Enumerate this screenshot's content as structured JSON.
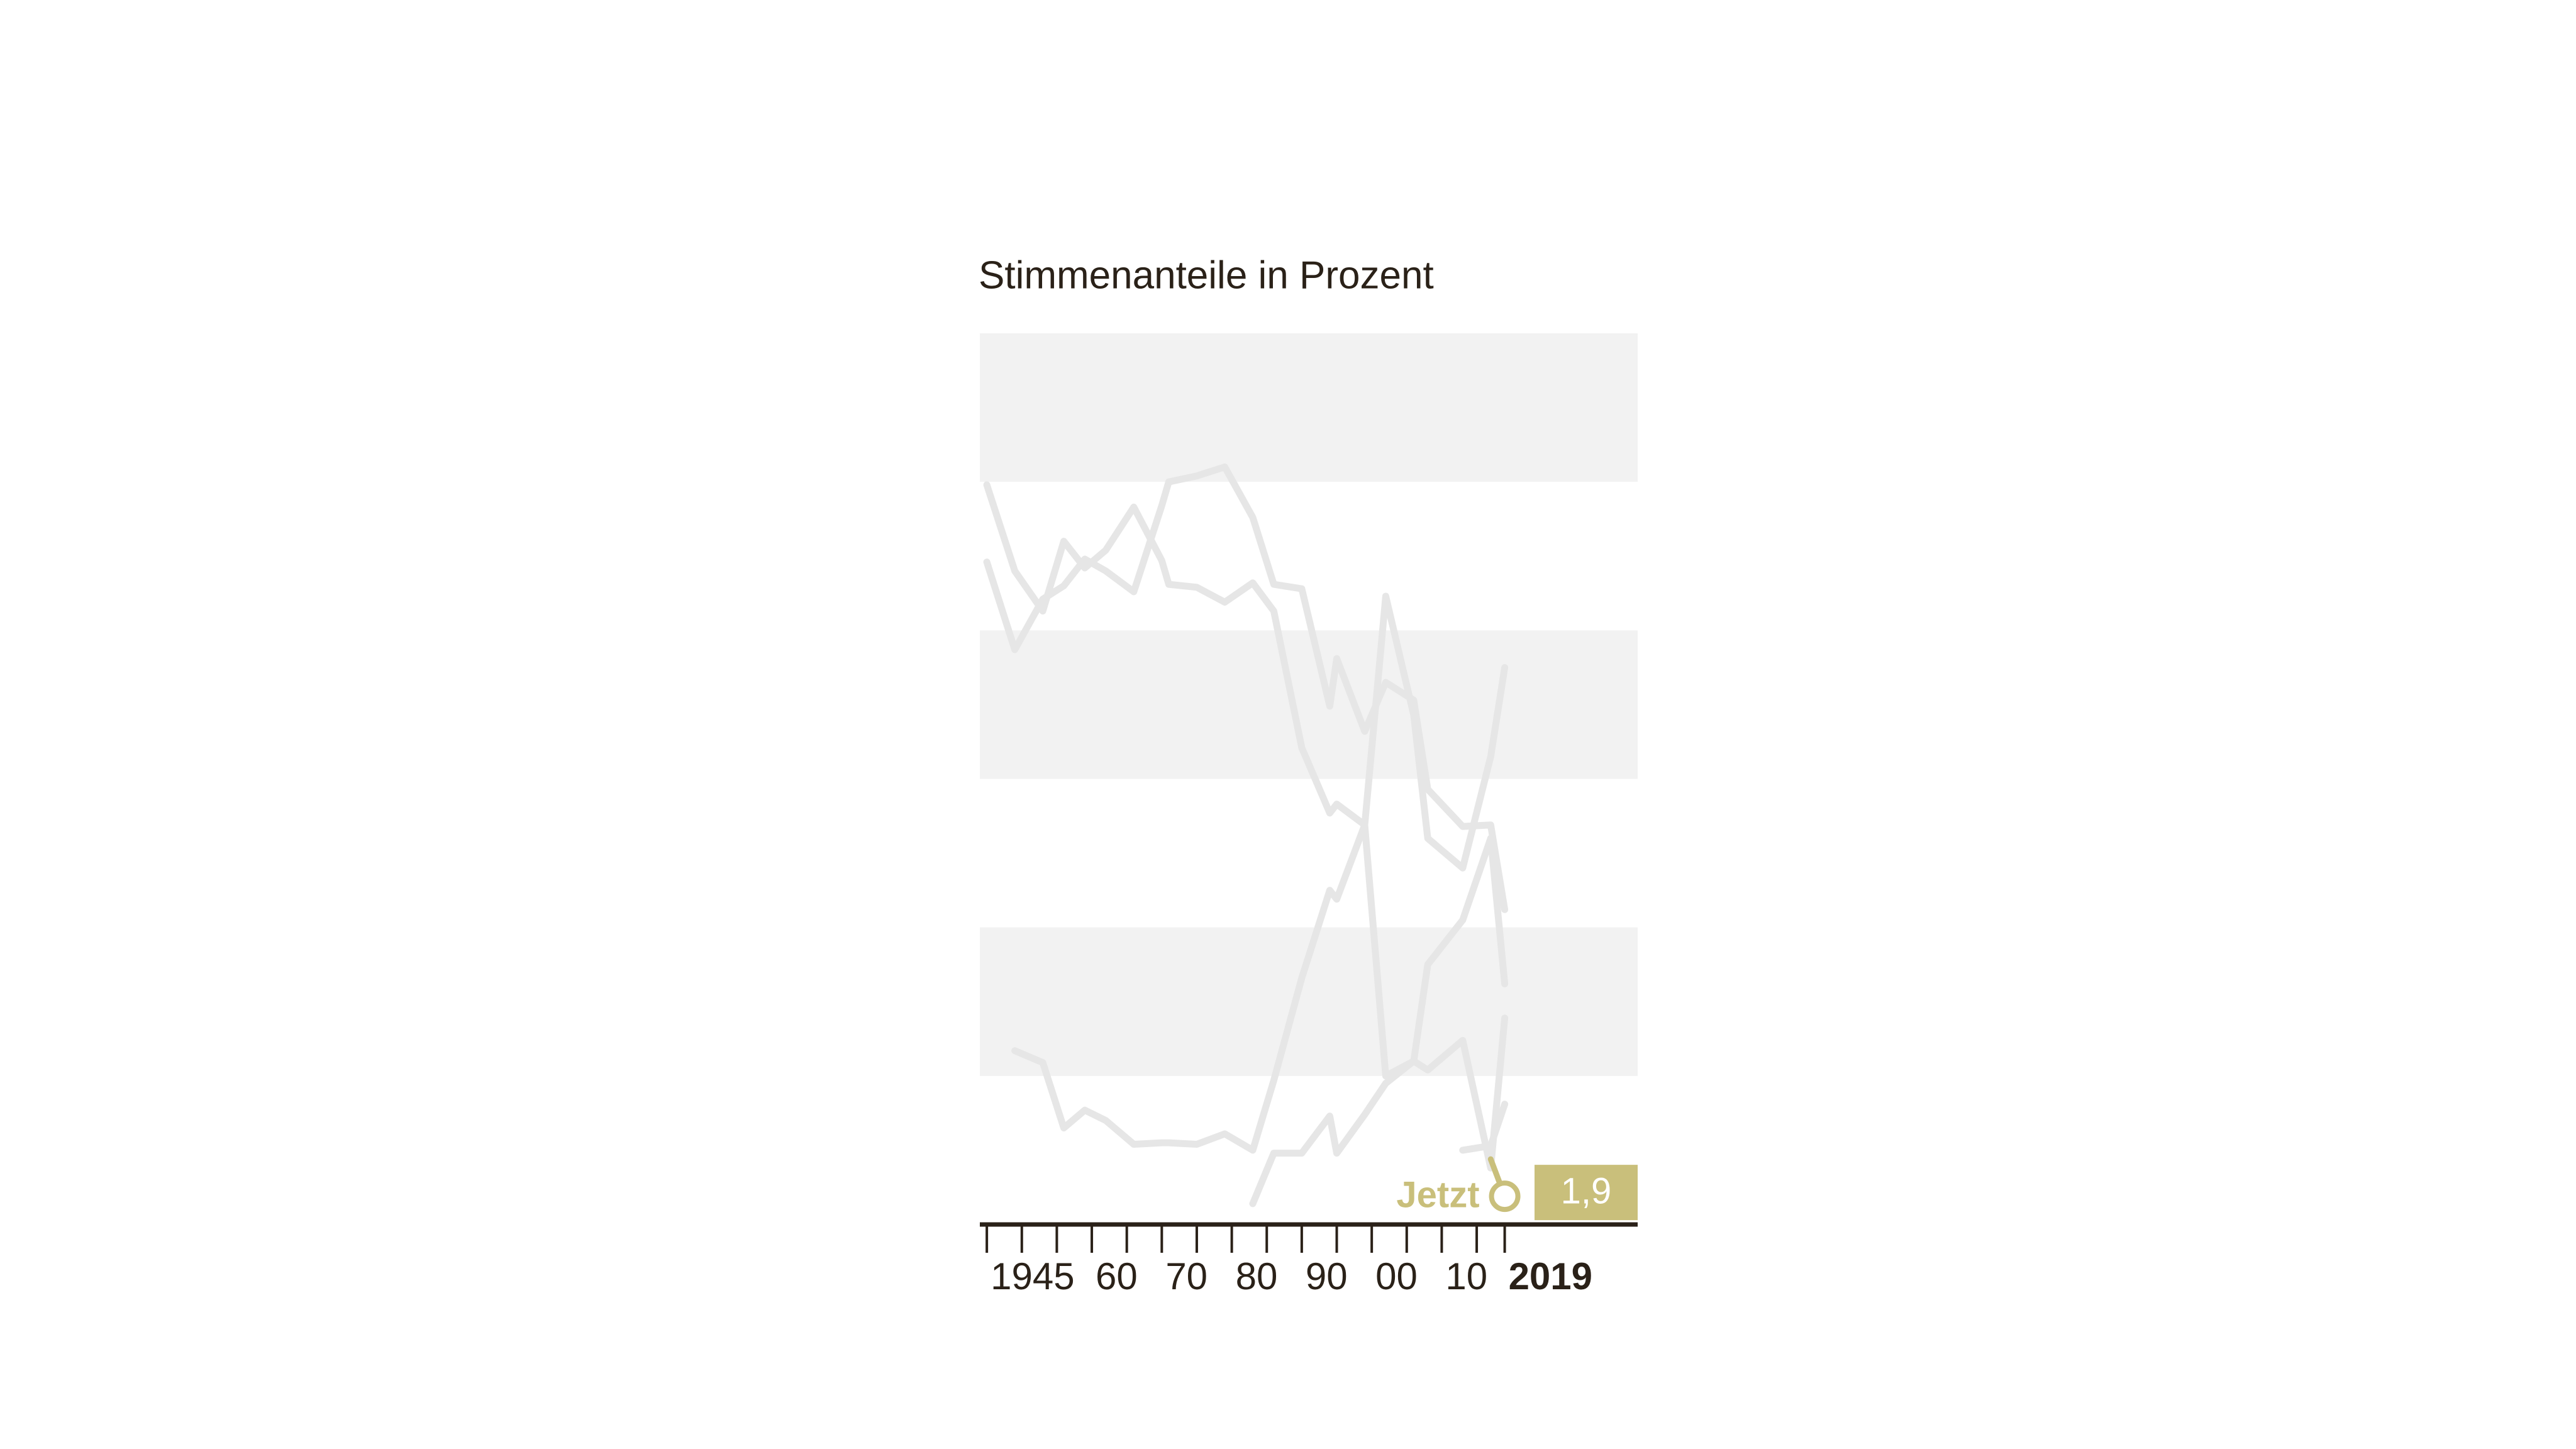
{
  "chart_data": {
    "type": "line",
    "title": "Stimmenanteile in Prozent",
    "xlim": [
      1944,
      2038
    ],
    "ylim": [
      0,
      60
    ],
    "xticks": [
      1945,
      {
        "value": 1960,
        "label": "60"
      },
      {
        "value": 1970,
        "label": "70"
      },
      {
        "value": 1980,
        "label": "80"
      },
      {
        "value": 1990,
        "label": "90"
      },
      {
        "value": 2000,
        "label": "00"
      },
      {
        "value": 2010,
        "label": "10"
      },
      2019
    ],
    "minor_xticks": [
      1950,
      1955,
      1965,
      1975,
      1985,
      1995,
      2005,
      2015
    ],
    "bands": [
      [
        10,
        20
      ],
      [
        30,
        40
      ],
      [
        50,
        60
      ]
    ],
    "band_color": "#f2f2f2",
    "series": [
      {
        "color": "#e6e6e6",
        "x": [
          1945,
          1949,
          1953,
          1956,
          1959,
          1962,
          1966,
          1970,
          1971,
          1975,
          1979,
          1983,
          1986,
          1990,
          1994,
          1995,
          1999,
          2002,
          2006,
          2008,
          2013,
          2017,
          2019
        ],
        "values": [
          49.8,
          44.0,
          41.3,
          46.0,
          44.2,
          45.4,
          48.3,
          44.7,
          43.1,
          42.9,
          41.9,
          43.2,
          41.3,
          32.1,
          27.7,
          28.3,
          26.9,
          42.3,
          34.3,
          26.0,
          24.0,
          31.5,
          37.5
        ]
      },
      {
        "color": "#e6e6e6",
        "x": [
          1945,
          1949,
          1953,
          1956,
          1959,
          1962,
          1966,
          1970,
          1971,
          1975,
          1979,
          1983,
          1986,
          1990,
          1994,
          1995,
          1999,
          2002,
          2006,
          2008,
          2013,
          2017,
          2019
        ],
        "values": [
          44.6,
          38.7,
          42.1,
          43.0,
          44.8,
          44.0,
          42.6,
          48.4,
          50.0,
          50.4,
          51.0,
          47.6,
          43.1,
          42.8,
          34.9,
          38.1,
          33.2,
          36.5,
          35.3,
          29.3,
          26.8,
          26.9,
          21.2
        ]
      },
      {
        "color": "#e6e6e6",
        "x": [
          1949,
          1953,
          1956,
          1959,
          1962,
          1966,
          1970,
          1971,
          1975,
          1979,
          1983,
          1986,
          1990,
          1994,
          1995,
          1999,
          2002,
          2006,
          2008,
          2013,
          2017,
          2019
        ],
        "values": [
          11.7,
          10.9,
          6.5,
          7.7,
          7.0,
          5.4,
          5.5,
          5.5,
          5.4,
          6.1,
          5.0,
          9.7,
          16.6,
          22.5,
          21.9,
          26.9,
          10.0,
          11.0,
          17.5,
          20.5,
          26.0,
          16.2
        ]
      },
      {
        "color": "#e6e6e6",
        "x": [
          1983,
          1986,
          1990,
          1994,
          1995,
          1999,
          2002,
          2006,
          2008,
          2013,
          2017,
          2019
        ],
        "values": [
          1.4,
          4.8,
          4.8,
          7.3,
          4.8,
          7.4,
          9.5,
          11.0,
          10.4,
          12.4,
          3.8,
          13.9
        ]
      },
      {
        "color": "#e6e6e6",
        "x": [
          2013,
          2017,
          2019
        ],
        "values": [
          5.0,
          5.3,
          8.1
        ]
      },
      {
        "name": "Jetzt",
        "color": "#c9bf7b",
        "x": [
          2017,
          2019
        ],
        "values": [
          4.4,
          1.9
        ],
        "value_labels": [
          null,
          "1,9"
        ]
      }
    ]
  }
}
